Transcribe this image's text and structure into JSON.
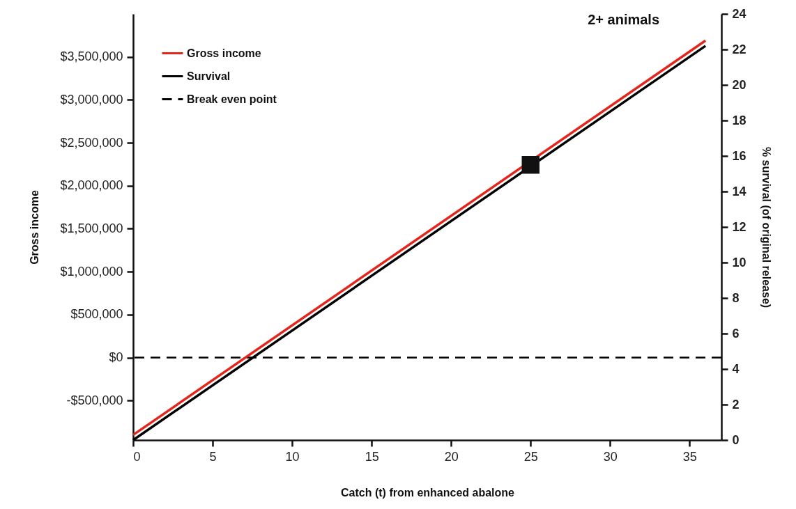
{
  "chart_data": {
    "type": "line",
    "title": "2+ animals",
    "xlabel": "Catch (t) from enhanced abalone",
    "ylabel": "Gross income",
    "y2label": "% survival (of original release)",
    "x": [
      0,
      36
    ],
    "series": [
      {
        "name": "Gross income",
        "color": "#e3261c",
        "values": [
          -900000,
          3690000
        ]
      },
      {
        "name": "Survival",
        "color": "#000000",
        "axis": "y2",
        "values": [
          0,
          22.2
        ]
      },
      {
        "type": "scatter",
        "color": "#111111",
        "axis": "y2",
        "marker": "square",
        "x": [
          25
        ],
        "values": [
          15.5
        ]
      }
    ],
    "ref_lines": [
      {
        "axis": "y",
        "value": 0,
        "label": "Break even point",
        "color": "#000000",
        "line_style": "dashed"
      }
    ],
    "xlim": [
      0,
      37
    ],
    "xticks": [
      0,
      5,
      10,
      15,
      20,
      25,
      30,
      35
    ],
    "ylim": [
      -960000,
      4000000
    ],
    "yticks": [
      {
        "value": -500000,
        "label": "-$500,000"
      },
      {
        "value": 0,
        "label": "$0"
      },
      {
        "value": 500000,
        "label": "$500,000"
      },
      {
        "value": 1000000,
        "label": "$1,000,000"
      },
      {
        "value": 1500000,
        "label": "$1,500,000"
      },
      {
        "value": 2000000,
        "label": "$2,000,000"
      },
      {
        "value": 2500000,
        "label": "$2,500,000"
      },
      {
        "value": 3000000,
        "label": "$3,000,000"
      },
      {
        "value": 3500000,
        "label": "$3,500,000"
      }
    ],
    "y2lim": [
      0,
      24
    ],
    "y2ticks": [
      0,
      2,
      4,
      6,
      8,
      10,
      12,
      14,
      16,
      18,
      20,
      22,
      24
    ],
    "grid": false,
    "legend": "top left",
    "line_style": "solid"
  }
}
